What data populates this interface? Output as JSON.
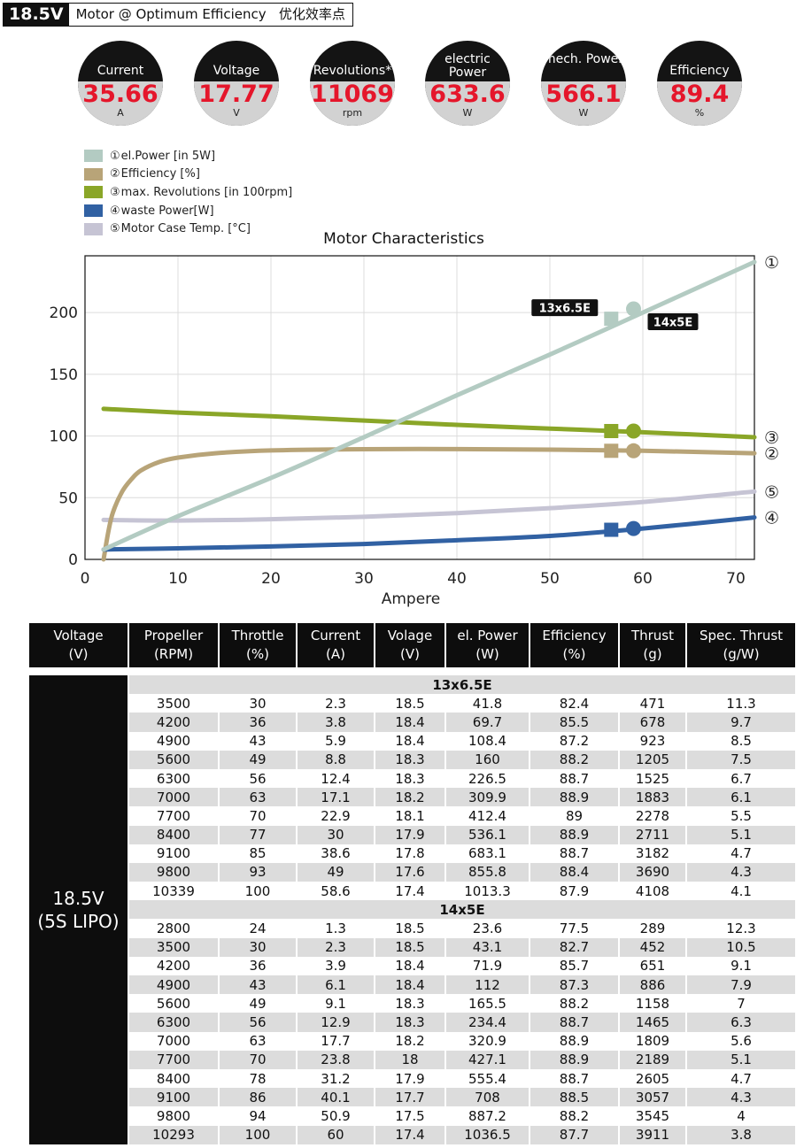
{
  "header": {
    "voltage": "18.5V",
    "title": "Motor @ Optimum Efficiency",
    "title_cn": "优化效率点"
  },
  "gauges": [
    {
      "label": "Current",
      "value": "35.66",
      "unit": "A"
    },
    {
      "label": "Voltage",
      "value": "17.77",
      "unit": "V"
    },
    {
      "label": "Revolutions*",
      "value": "11069",
      "unit": "rpm"
    },
    {
      "label": "electric Power",
      "value": "633.6",
      "unit": "W"
    },
    {
      "label": "mech. Power",
      "value": "566.1",
      "unit": "W"
    },
    {
      "label": "Efficiency",
      "value": "89.4",
      "unit": "%"
    }
  ],
  "legend": [
    {
      "num": "①",
      "text": "el.Power [in 5W]",
      "color": "#b3cbc2"
    },
    {
      "num": "②",
      "text": "Efficiency [%]",
      "color": "#b8a478"
    },
    {
      "num": "③",
      "text": "max. Revolutions [in 100rpm]",
      "color": "#8aa628"
    },
    {
      "num": "④",
      "text": "waste Power[W]",
      "color": "#3161a3"
    },
    {
      "num": "⑤",
      "text": "Motor Case Temp. [°C]",
      "color": "#c6c4d4"
    }
  ],
  "chart_data": {
    "type": "line",
    "title": "Motor Characteristics",
    "xlabel": "Ampere",
    "ylabel": "",
    "xlim": [
      0,
      72
    ],
    "ylim": [
      0,
      246
    ],
    "xticks": [
      0,
      10,
      20,
      30,
      40,
      50,
      60,
      70
    ],
    "yticks": [
      0,
      50,
      100,
      150,
      200
    ],
    "series": [
      {
        "id": "1",
        "num": "①",
        "name": "el.Power [in 5W]",
        "color": "#b3cbc2",
        "x": [
          2,
          10,
          20,
          30,
          40,
          50,
          60,
          72
        ],
        "y": [
          8,
          35,
          66,
          99,
          133,
          166,
          200,
          241
        ]
      },
      {
        "id": "2",
        "num": "②",
        "name": "Efficiency [%]",
        "color": "#b8a478",
        "x": [
          2,
          2.5,
          3,
          4,
          5,
          6,
          8,
          10,
          14,
          20,
          30,
          40,
          50,
          60,
          72
        ],
        "y": [
          0,
          22,
          38,
          55,
          65,
          72,
          79,
          82.5,
          86,
          88.3,
          89.3,
          89.4,
          88.9,
          88,
          86
        ]
      },
      {
        "id": "3",
        "num": "③",
        "name": "max. Revolutions [in 100rpm]",
        "color": "#8aa628",
        "x": [
          2,
          10,
          20,
          30,
          40,
          50,
          60,
          72
        ],
        "y": [
          122,
          119,
          116,
          112.5,
          109,
          106,
          103,
          99
        ]
      },
      {
        "id": "4",
        "num": "④",
        "name": "waste Power[W]",
        "color": "#3161a3",
        "x": [
          2,
          10,
          20,
          30,
          40,
          50,
          60,
          72
        ],
        "y": [
          8,
          9,
          10.5,
          12.5,
          15.5,
          19,
          25,
          34
        ]
      },
      {
        "id": "5",
        "num": "⑤",
        "name": "Motor Case Temp. [°C]",
        "color": "#c6c4d4",
        "x": [
          2,
          10,
          20,
          30,
          40,
          50,
          60,
          72
        ],
        "y": [
          32,
          31.5,
          32.5,
          34.5,
          37.5,
          41.5,
          46.5,
          55
        ]
      }
    ],
    "markers": [
      {
        "prop": "13x6.5E",
        "shape": "square",
        "x": 56.6,
        "points": [
          {
            "series": "1",
            "y": 195
          },
          {
            "series": "3",
            "y": 104
          },
          {
            "series": "2",
            "y": 88
          },
          {
            "series": "4",
            "y": 24
          }
        ]
      },
      {
        "prop": "14x5E",
        "shape": "circle",
        "x": 59,
        "points": [
          {
            "series": "1",
            "y": 203
          },
          {
            "series": "3",
            "y": 104
          },
          {
            "series": "2",
            "y": 88
          },
          {
            "series": "4",
            "y": 25
          }
        ]
      }
    ]
  },
  "table": {
    "headers": [
      [
        "Voltage",
        "(V)"
      ],
      [
        "Propeller",
        "(RPM)"
      ],
      [
        "Throttle",
        "(%)"
      ],
      [
        "Current",
        "(A)"
      ],
      [
        "Volage",
        "(V)"
      ],
      [
        "el. Power",
        "(W)"
      ],
      [
        "Efficiency",
        "(%)"
      ],
      [
        "Thrust",
        "(g)"
      ],
      [
        "Spec. Thrust",
        "(g/W)"
      ]
    ],
    "side_label": [
      "18.5V",
      "(5S LIPO)"
    ],
    "sections": [
      {
        "name": "13x6.5E",
        "rows": [
          [
            "3500",
            "30",
            "2.3",
            "18.5",
            "41.8",
            "82.4",
            "471",
            "11.3"
          ],
          [
            "4200",
            "36",
            "3.8",
            "18.4",
            "69.7",
            "85.5",
            "678",
            "9.7"
          ],
          [
            "4900",
            "43",
            "5.9",
            "18.4",
            "108.4",
            "87.2",
            "923",
            "8.5"
          ],
          [
            "5600",
            "49",
            "8.8",
            "18.3",
            "160",
            "88.2",
            "1205",
            "7.5"
          ],
          [
            "6300",
            "56",
            "12.4",
            "18.3",
            "226.5",
            "88.7",
            "1525",
            "6.7"
          ],
          [
            "7000",
            "63",
            "17.1",
            "18.2",
            "309.9",
            "88.9",
            "1883",
            "6.1"
          ],
          [
            "7700",
            "70",
            "22.9",
            "18.1",
            "412.4",
            "89",
            "2278",
            "5.5"
          ],
          [
            "8400",
            "77",
            "30",
            "17.9",
            "536.1",
            "88.9",
            "2711",
            "5.1"
          ],
          [
            "9100",
            "85",
            "38.6",
            "17.8",
            "683.1",
            "88.7",
            "3182",
            "4.7"
          ],
          [
            "9800",
            "93",
            "49",
            "17.6",
            "855.8",
            "88.4",
            "3690",
            "4.3"
          ],
          [
            "10339",
            "100",
            "58.6",
            "17.4",
            "1013.3",
            "87.9",
            "4108",
            "4.1"
          ]
        ]
      },
      {
        "name": "14x5E",
        "rows": [
          [
            "2800",
            "24",
            "1.3",
            "18.5",
            "23.6",
            "77.5",
            "289",
            "12.3"
          ],
          [
            "3500",
            "30",
            "2.3",
            "18.5",
            "43.1",
            "82.7",
            "452",
            "10.5"
          ],
          [
            "4200",
            "36",
            "3.9",
            "18.4",
            "71.9",
            "85.7",
            "651",
            "9.1"
          ],
          [
            "4900",
            "43",
            "6.1",
            "18.4",
            "112",
            "87.3",
            "886",
            "7.9"
          ],
          [
            "5600",
            "49",
            "9.1",
            "18.3",
            "165.5",
            "88.2",
            "1158",
            "7"
          ],
          [
            "6300",
            "56",
            "12.9",
            "18.3",
            "234.4",
            "88.7",
            "1465",
            "6.3"
          ],
          [
            "7000",
            "63",
            "17.7",
            "18.2",
            "320.9",
            "88.9",
            "1809",
            "5.6"
          ],
          [
            "7700",
            "70",
            "23.8",
            "18",
            "427.1",
            "88.9",
            "2189",
            "5.1"
          ],
          [
            "8400",
            "78",
            "31.2",
            "17.9",
            "555.4",
            "88.7",
            "2605",
            "4.7"
          ],
          [
            "9100",
            "86",
            "40.1",
            "17.7",
            "708",
            "88.5",
            "3057",
            "4.3"
          ],
          [
            "9800",
            "94",
            "50.9",
            "17.5",
            "887.2",
            "88.2",
            "3545",
            "4"
          ],
          [
            "10293",
            "100",
            "60",
            "17.4",
            "1036.5",
            "87.7",
            "3911",
            "3.8"
          ]
        ]
      }
    ]
  }
}
